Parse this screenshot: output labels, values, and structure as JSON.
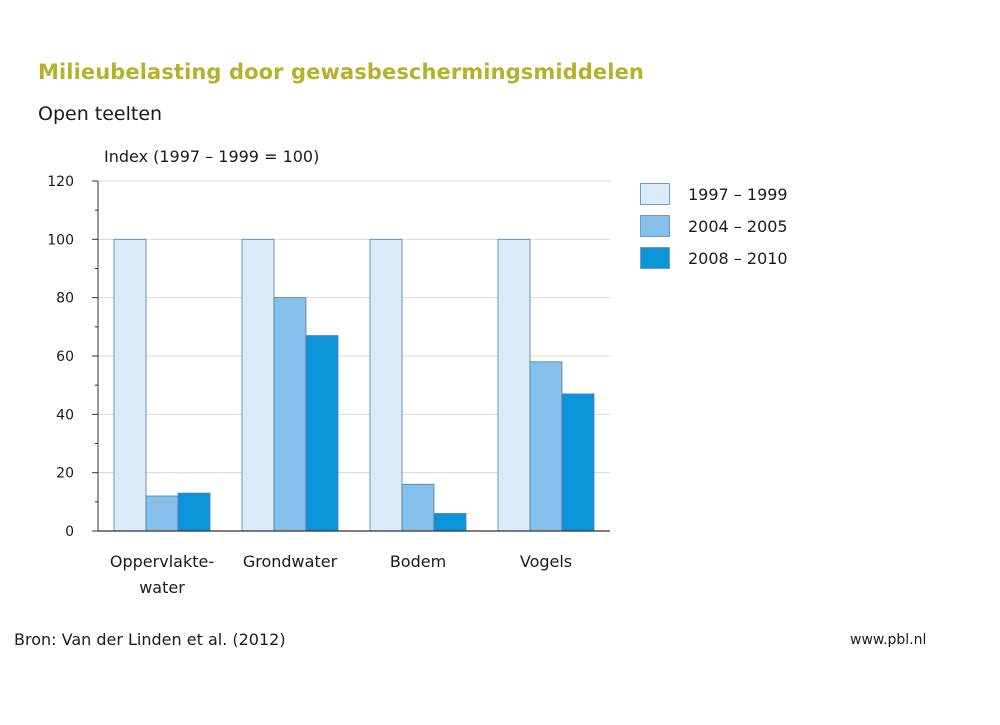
{
  "header": {
    "title": "Milieubelasting door gewasbeschermingsmiddelen",
    "subtitle": "Open teelten"
  },
  "footer": {
    "source": "Bron: Van der Linden et al. (2012)",
    "website": "www.pbl.nl"
  },
  "colors": {
    "title": "#b3b22a",
    "series": [
      "#dbeaf8",
      "#86c0ea",
      "#0d93d8"
    ],
    "grid": "#d9d9d9",
    "axis": "#333333"
  },
  "chart_data": {
    "type": "bar",
    "title": "Milieubelasting door gewasbeschermingsmiddelen",
    "subtitle": "Open teelten",
    "ylabel": "Index (1997 – 1999 = 100)",
    "xlabel": "",
    "ylim": [
      0,
      120
    ],
    "yticks": [
      "0",
      "20",
      "40",
      "60",
      "80",
      "100",
      "120"
    ],
    "ytick_values": [
      0,
      20,
      40,
      60,
      80,
      100,
      120
    ],
    "categories": [
      [
        "Oppervlakte-",
        "water"
      ],
      [
        "Grondwater"
      ],
      [
        "Bodem"
      ],
      [
        "Vogels"
      ]
    ],
    "series": [
      {
        "name": "1997 – 1999",
        "values": [
          100,
          100,
          100,
          100
        ]
      },
      {
        "name": "2004 – 2005",
        "values": [
          12,
          80,
          16,
          58
        ]
      },
      {
        "name": "2008 – 2010",
        "values": [
          13,
          67,
          6,
          47
        ]
      }
    ],
    "grid": true,
    "legend_position": "right"
  }
}
